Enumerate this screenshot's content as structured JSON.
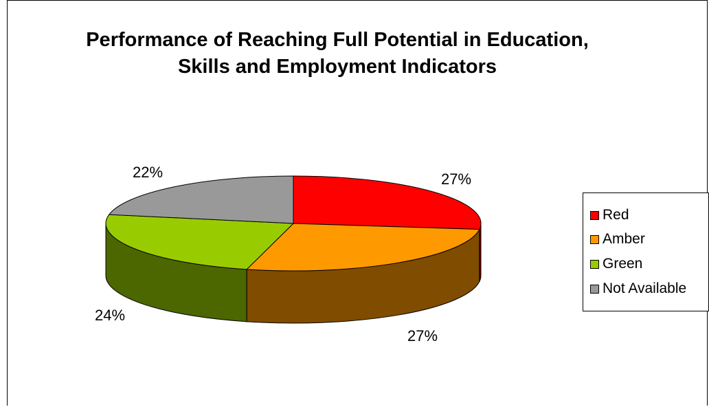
{
  "chart_data": {
    "type": "pie",
    "title_lines": [
      "Performance of Reaching Full Potential in Education,",
      "Skills and Employment Indicators"
    ],
    "categories": [
      "Red",
      "Amber",
      "Green",
      "Not Available"
    ],
    "values": [
      27,
      27,
      24,
      22
    ],
    "value_labels": [
      "27%",
      "27%",
      "24%",
      "22%"
    ],
    "colors": {
      "top": [
        "#ff0000",
        "#ff9900",
        "#99cc00",
        "#999999"
      ],
      "side": [
        "#800000",
        "#804c00",
        "#4c6600",
        "#4c4c4c"
      ]
    },
    "legend_position": "right"
  }
}
